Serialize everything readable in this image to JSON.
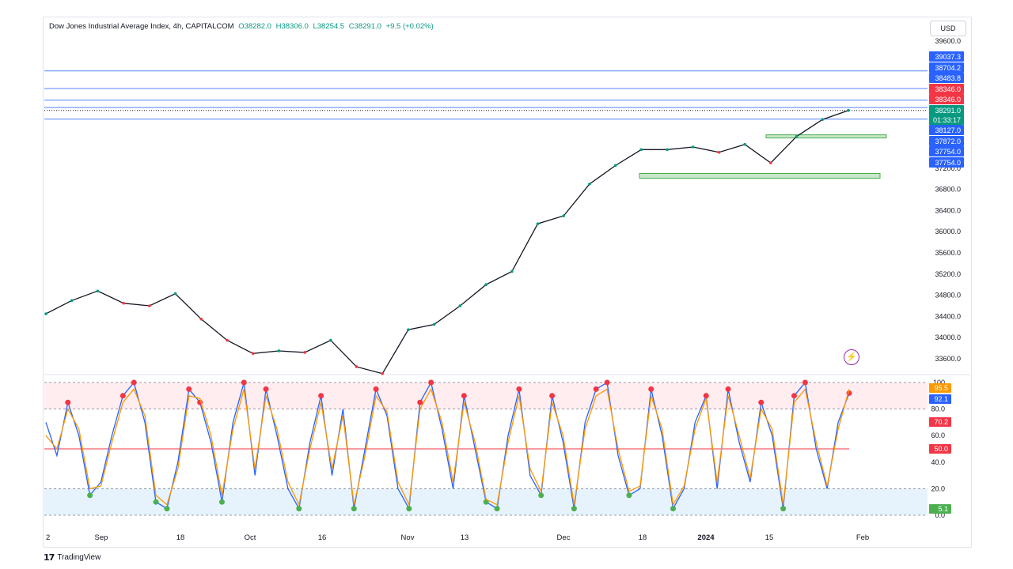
{
  "header": {
    "symbol": "Dow Jones Industrial Average Index, 4h, CAPITALCOM",
    "open": "O38282.0",
    "high": "H38306.0",
    "low": "L38254.5",
    "close": "C38291.0",
    "change": "+9.5 (+0.02%)"
  },
  "currency_button": "USD",
  "footer_brand": "TradingView",
  "colors": {
    "up": "#089981",
    "down": "#f23645",
    "blue_line": "#2962ff",
    "stoch_k": "#2962ff",
    "stoch_d": "#ff9800"
  },
  "chart_data": [
    {
      "type": "line",
      "title": "Dow Jones Industrial Average Index, 4h, CAPITALCOM",
      "x_ticks": [
        "2",
        "Sep",
        "18",
        "Oct",
        "16",
        "Nov",
        "13",
        "Dec",
        "18",
        "2024",
        "15",
        "Feb"
      ],
      "y_ticks": [
        39600.0,
        37200.0,
        36800.0,
        36400.0,
        36000.0,
        35600.0,
        35200.0,
        34800.0,
        34400.0,
        34000.0,
        33600.0
      ],
      "ylim": [
        33500,
        39700
      ],
      "series": [
        {
          "x": [
            "Aug 22",
            "Aug 28",
            "Sep 1",
            "Sep 5",
            "Sep 11",
            "Sep 15",
            "Sep 20",
            "Sep 26",
            "Oct 2",
            "Oct 6",
            "Oct 11",
            "Oct 17",
            "Oct 23",
            "Oct 27",
            "Nov 2",
            "Nov 8",
            "Nov 14",
            "Nov 20",
            "Nov 27",
            "Dec 1",
            "Dec 6",
            "Dec 12",
            "Dec 15",
            "Dec 20",
            "Dec 27",
            "Jan 2",
            "Jan 8",
            "Jan 12",
            "Jan 17",
            "Jan 19",
            "Jan 24",
            "Jan 29"
          ],
          "values": [
            34450,
            34700,
            34880,
            34650,
            34600,
            34830,
            34350,
            33950,
            33700,
            33750,
            33720,
            33950,
            33450,
            33320,
            34150,
            34250,
            34600,
            35000,
            35250,
            36150,
            36300,
            36900,
            37250,
            37550,
            37550,
            37600,
            37500,
            37650,
            37300,
            37800,
            38120,
            38291
          ]
        }
      ],
      "price_labels": [
        {
          "value": "39037.3",
          "color": "#2962ff"
        },
        {
          "value": "38704.2",
          "color": "#2962ff"
        },
        {
          "value": "38483.8",
          "color": "#2962ff"
        },
        {
          "value": "38346.0",
          "color": "#f23645"
        },
        {
          "value": "38346.0",
          "color": "#f23645"
        },
        {
          "value": "38291.0",
          "color": "#089981"
        },
        {
          "value": "01:33:17",
          "color": "#089981"
        },
        {
          "value": "38127.0",
          "color": "#2962ff"
        },
        {
          "value": "37872.0",
          "color": "#2962ff"
        },
        {
          "value": "37754.0",
          "color": "#2962ff"
        },
        {
          "value": "37754.0",
          "color": "#2962ff"
        }
      ],
      "horizontal_levels": [
        39037.3,
        38704.2,
        38483.8,
        38346.0,
        38127.0
      ]
    },
    {
      "type": "line",
      "title": "",
      "y_ticks": [
        100,
        80.0,
        60.0,
        40.0,
        20.0,
        0.0
      ],
      "ylim": [
        0,
        100
      ],
      "bands": {
        "overbought": 80,
        "oversold": 20,
        "mid": 50
      },
      "series": [
        {
          "values": [
            70,
            45,
            85,
            60,
            15,
            25,
            60,
            90,
            100,
            70,
            10,
            5,
            40,
            95,
            85,
            55,
            10,
            70,
            100,
            30,
            95,
            60,
            20,
            5,
            55,
            90,
            30,
            80,
            5,
            50,
            95,
            75,
            20,
            5,
            85,
            100,
            65,
            20,
            90,
            50,
            10,
            5,
            60,
            95,
            30,
            15,
            90,
            55,
            5,
            70,
            95,
            100,
            45,
            15,
            20,
            95,
            60,
            5,
            20,
            70,
            90,
            20,
            95,
            55,
            25,
            85,
            60,
            5,
            90,
            100,
            50,
            20,
            70,
            92
          ]
        },
        {
          "values": [
            60,
            50,
            80,
            65,
            20,
            22,
            55,
            85,
            95,
            75,
            15,
            8,
            35,
            90,
            88,
            60,
            15,
            65,
            95,
            35,
            90,
            65,
            25,
            8,
            50,
            85,
            35,
            75,
            8,
            45,
            90,
            78,
            25,
            8,
            80,
            95,
            70,
            25,
            85,
            55,
            12,
            8,
            55,
            90,
            35,
            18,
            85,
            60,
            8,
            65,
            90,
            95,
            50,
            18,
            22,
            90,
            65,
            8,
            22,
            65,
            88,
            25,
            90,
            60,
            28,
            80,
            65,
            8,
            85,
            95,
            55,
            22,
            65,
            95
          ]
        }
      ],
      "value_labels": [
        {
          "value": "95.5",
          "color": "#ff9800"
        },
        {
          "value": "92.1",
          "color": "#2962ff"
        },
        {
          "value": "70.2",
          "color": "#f23645"
        },
        {
          "value": "50.0",
          "color": "#f23645"
        },
        {
          "value": "5.1",
          "color": "#4caf50"
        }
      ]
    }
  ]
}
